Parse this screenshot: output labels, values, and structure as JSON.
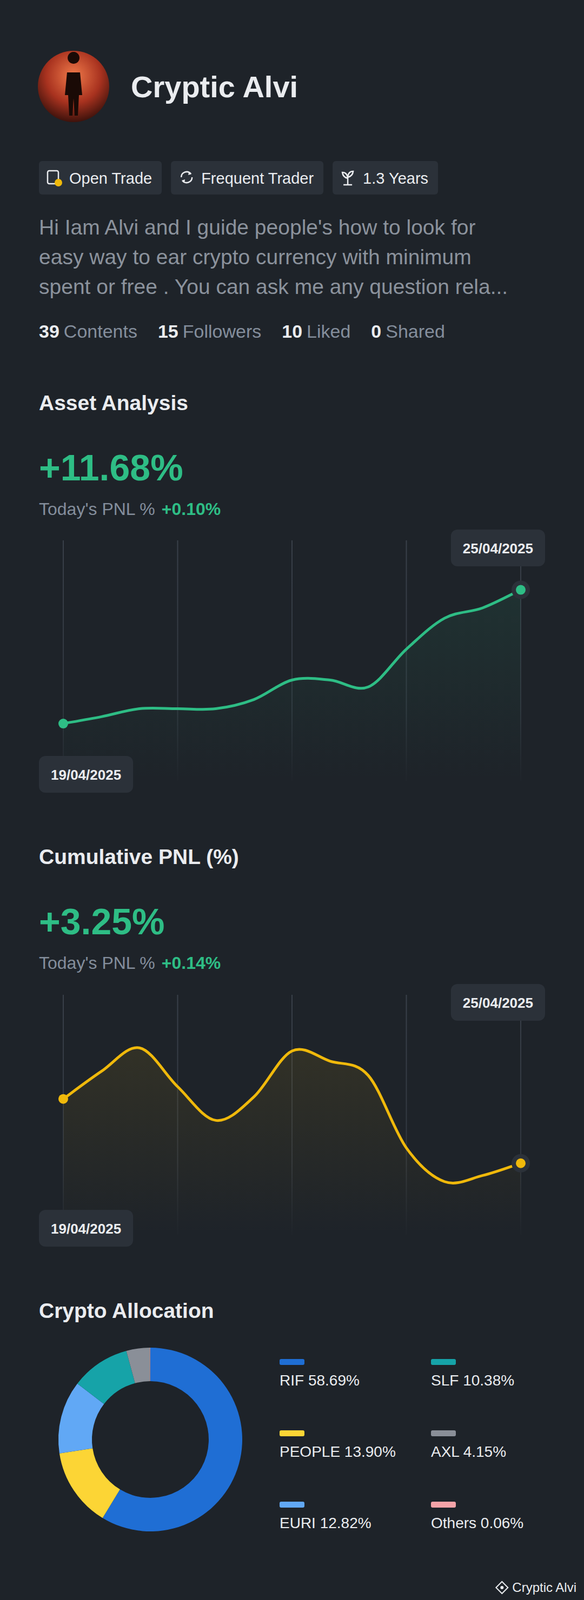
{
  "profile": {
    "name": "Cryptic Alvi",
    "tags": [
      "Open Trade",
      "Frequent Trader",
      "1.3 Years"
    ],
    "bio": [
      "Hi Iam Alvi and I guide people's how to look for",
      "easy way to ear crypto currency with minimum",
      "spent or free . You can ask me any question rela..."
    ],
    "stats": [
      {
        "value": 39,
        "label": "Contents"
      },
      {
        "value": 15,
        "label": "Followers"
      },
      {
        "value": 10,
        "label": "Liked"
      },
      {
        "value": 0,
        "label": "Shared"
      }
    ]
  },
  "summaries": [
    {
      "headline": "+11.68%",
      "today_label": "Today's PNL %",
      "today_value": "+0.10%"
    },
    {
      "headline": "+3.25%",
      "today_label": "Today's PNL %",
      "today_value": "+0.14%"
    }
  ],
  "chart_data": [
    {
      "type": "line",
      "title": "Asset Analysis",
      "categories": [
        "19/04/2025",
        null,
        null,
        null,
        null,
        null,
        null,
        null,
        null,
        null,
        null,
        null,
        "25/04/2025"
      ],
      "values": [
        0,
        0.6,
        1.3,
        1.3,
        1.3,
        2.1,
        3.8,
        3.8,
        3.2,
        6.5,
        9.2,
        10.1,
        11.68
      ],
      "color": "#2ebd85",
      "ylim": [
        -5,
        16
      ],
      "grid": true
    },
    {
      "type": "line",
      "title": "Cumulative PNL (%)",
      "categories": [
        "19/04/2025",
        null,
        null,
        null,
        null,
        null,
        null,
        null,
        null,
        null,
        null,
        null,
        "25/04/2025"
      ],
      "values": [
        6.4,
        7.75,
        8.9,
        7.0,
        5.35,
        6.5,
        8.75,
        8.25,
        7.55,
        4.0,
        2.35,
        2.65,
        3.25
      ],
      "color": "#f0b90b",
      "ylim": [
        -0.25,
        11.5
      ],
      "grid": true
    },
    {
      "type": "donut",
      "title": "Crypto Allocation",
      "categories": [
        "RIF",
        "PEOPLE",
        "EURI",
        "SLF",
        "AXL",
        "Others"
      ],
      "values": [
        58.69,
        13.9,
        12.82,
        10.38,
        4.15,
        0.06
      ],
      "value_labels": [
        "58.69%",
        "13.90%",
        "12.82%",
        "10.38%",
        "4.15%",
        "0.06%"
      ],
      "colors": [
        "#1f6ed4",
        "#fcd535",
        "#61a8f5",
        "#16a3a8",
        "#8a8f98",
        "#f5a3a8"
      ],
      "legend": "right"
    }
  ],
  "watermark": "Cryptic Alvi"
}
